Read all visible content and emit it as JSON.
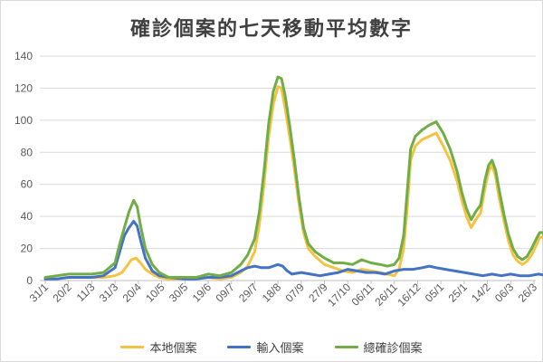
{
  "chart_data": {
    "type": "line",
    "title": "確診個案的七天移動平均數字",
    "xlabel": "",
    "ylabel": "",
    "ylim": [
      0,
      140
    ],
    "yticks": [
      0,
      20,
      40,
      60,
      80,
      100,
      120,
      140
    ],
    "grid": true,
    "legend_position": "bottom",
    "x_tick_labels": [
      "31/1",
      "20/2",
      "11/3",
      "31/3",
      "20/4",
      "10/5",
      "30/5",
      "19/6",
      "09/7",
      "29/7",
      "18/8",
      "07/9",
      "27/9",
      "17/10",
      "06/11",
      "26/11",
      "16/12",
      "05/1",
      "25/1",
      "14/2",
      "06/3",
      "26/3"
    ],
    "series": [
      {
        "name": "本地個案",
        "color": "#f5c242",
        "points": [
          [
            0,
            1
          ],
          [
            0.5,
            1
          ],
          [
            1,
            2
          ],
          [
            1.5,
            2
          ],
          [
            2,
            2
          ],
          [
            2.5,
            2
          ],
          [
            3,
            3
          ],
          [
            3.3,
            5
          ],
          [
            3.5,
            9
          ],
          [
            3.7,
            13
          ],
          [
            3.9,
            14
          ],
          [
            4.1,
            11
          ],
          [
            4.3,
            7
          ],
          [
            4.6,
            4
          ],
          [
            4.9,
            2
          ],
          [
            5.3,
            1
          ],
          [
            6,
            1
          ],
          [
            6.5,
            1
          ],
          [
            7,
            2
          ],
          [
            7.5,
            1
          ],
          [
            8,
            2
          ],
          [
            8.4,
            5
          ],
          [
            8.7,
            9
          ],
          [
            9,
            18
          ],
          [
            9.2,
            35
          ],
          [
            9.4,
            60
          ],
          [
            9.6,
            90
          ],
          [
            9.8,
            110
          ],
          [
            10,
            121
          ],
          [
            10.15,
            120
          ],
          [
            10.3,
            108
          ],
          [
            10.5,
            90
          ],
          [
            10.7,
            70
          ],
          [
            10.9,
            48
          ],
          [
            11.1,
            30
          ],
          [
            11.3,
            20
          ],
          [
            11.6,
            15
          ],
          [
            12,
            10
          ],
          [
            12.4,
            8
          ],
          [
            12.8,
            6
          ],
          [
            13.2,
            5
          ],
          [
            13.6,
            7
          ],
          [
            14,
            6
          ],
          [
            14.4,
            5
          ],
          [
            14.7,
            4
          ],
          [
            15,
            3
          ],
          [
            15.2,
            7
          ],
          [
            15.4,
            20
          ],
          [
            15.55,
            45
          ],
          [
            15.7,
            75
          ],
          [
            15.9,
            84
          ],
          [
            16.2,
            88
          ],
          [
            16.5,
            90
          ],
          [
            16.8,
            92
          ],
          [
            17.1,
            84
          ],
          [
            17.4,
            75
          ],
          [
            17.7,
            62
          ],
          [
            17.9,
            50
          ],
          [
            18.1,
            40
          ],
          [
            18.3,
            33
          ],
          [
            18.5,
            38
          ],
          [
            18.7,
            42
          ],
          [
            18.9,
            58
          ],
          [
            19.05,
            68
          ],
          [
            19.2,
            72
          ],
          [
            19.35,
            65
          ],
          [
            19.5,
            52
          ],
          [
            19.7,
            38
          ],
          [
            19.9,
            25
          ],
          [
            20.1,
            16
          ],
          [
            20.3,
            12
          ],
          [
            20.5,
            10
          ],
          [
            20.7,
            12
          ],
          [
            20.9,
            16
          ],
          [
            21.1,
            22
          ],
          [
            21.25,
            27
          ],
          [
            21.4,
            27
          ],
          [
            21.6,
            12
          ],
          [
            21.8,
            6
          ],
          [
            22,
            5
          ]
        ]
      },
      {
        "name": "輸入個案",
        "color": "#4472c4",
        "points": [
          [
            0,
            1
          ],
          [
            0.5,
            1
          ],
          [
            1,
            2
          ],
          [
            1.5,
            2
          ],
          [
            2,
            2
          ],
          [
            2.5,
            3
          ],
          [
            3,
            8
          ],
          [
            3.2,
            18
          ],
          [
            3.4,
            28
          ],
          [
            3.6,
            33
          ],
          [
            3.8,
            37
          ],
          [
            3.95,
            34
          ],
          [
            4.1,
            25
          ],
          [
            4.3,
            14
          ],
          [
            4.6,
            6
          ],
          [
            4.9,
            3
          ],
          [
            5.3,
            2
          ],
          [
            6,
            1
          ],
          [
            6.5,
            1
          ],
          [
            7,
            2
          ],
          [
            7.5,
            2
          ],
          [
            8,
            3
          ],
          [
            8.4,
            6
          ],
          [
            8.7,
            8
          ],
          [
            9,
            9
          ],
          [
            9.3,
            8
          ],
          [
            9.6,
            8
          ],
          [
            9.8,
            9
          ],
          [
            10,
            10
          ],
          [
            10.2,
            9
          ],
          [
            10.4,
            6
          ],
          [
            10.6,
            4
          ],
          [
            11,
            5
          ],
          [
            11.4,
            4
          ],
          [
            11.8,
            3
          ],
          [
            12.2,
            4
          ],
          [
            12.6,
            5
          ],
          [
            13,
            7
          ],
          [
            13.4,
            6
          ],
          [
            13.8,
            5
          ],
          [
            14.2,
            5
          ],
          [
            14.6,
            4
          ],
          [
            15,
            6
          ],
          [
            15.4,
            7
          ],
          [
            15.8,
            7
          ],
          [
            16.2,
            8
          ],
          [
            16.5,
            9
          ],
          [
            16.8,
            8
          ],
          [
            17.2,
            7
          ],
          [
            17.6,
            6
          ],
          [
            18,
            5
          ],
          [
            18.4,
            4
          ],
          [
            18.8,
            3
          ],
          [
            19.2,
            4
          ],
          [
            19.6,
            3
          ],
          [
            20,
            4
          ],
          [
            20.4,
            3
          ],
          [
            20.8,
            3
          ],
          [
            21.2,
            4
          ],
          [
            21.6,
            3
          ],
          [
            22,
            5
          ]
        ]
      },
      {
        "name": "總確診個案",
        "color": "#70ad47",
        "points": [
          [
            0,
            2
          ],
          [
            0.5,
            3
          ],
          [
            1,
            4
          ],
          [
            1.5,
            4
          ],
          [
            2,
            4
          ],
          [
            2.5,
            5
          ],
          [
            3,
            11
          ],
          [
            3.2,
            23
          ],
          [
            3.4,
            33
          ],
          [
            3.6,
            43
          ],
          [
            3.8,
            50
          ],
          [
            3.95,
            46
          ],
          [
            4.1,
            34
          ],
          [
            4.3,
            20
          ],
          [
            4.6,
            10
          ],
          [
            4.9,
            5
          ],
          [
            5.3,
            2
          ],
          [
            6,
            2
          ],
          [
            6.5,
            2
          ],
          [
            7,
            4
          ],
          [
            7.5,
            3
          ],
          [
            8,
            5
          ],
          [
            8.4,
            10
          ],
          [
            8.7,
            16
          ],
          [
            9,
            26
          ],
          [
            9.2,
            43
          ],
          [
            9.4,
            68
          ],
          [
            9.6,
            98
          ],
          [
            9.8,
            118
          ],
          [
            10,
            127
          ],
          [
            10.15,
            126
          ],
          [
            10.3,
            116
          ],
          [
            10.5,
            97
          ],
          [
            10.7,
            76
          ],
          [
            10.9,
            52
          ],
          [
            11.1,
            33
          ],
          [
            11.3,
            23
          ],
          [
            11.6,
            18
          ],
          [
            12,
            14
          ],
          [
            12.4,
            11
          ],
          [
            12.8,
            11
          ],
          [
            13.2,
            10
          ],
          [
            13.6,
            13
          ],
          [
            14,
            11
          ],
          [
            14.4,
            10
          ],
          [
            14.7,
            9
          ],
          [
            15,
            10
          ],
          [
            15.2,
            14
          ],
          [
            15.4,
            28
          ],
          [
            15.55,
            55
          ],
          [
            15.7,
            82
          ],
          [
            15.9,
            90
          ],
          [
            16.2,
            94
          ],
          [
            16.5,
            97
          ],
          [
            16.8,
            99
          ],
          [
            17.1,
            92
          ],
          [
            17.4,
            82
          ],
          [
            17.7,
            68
          ],
          [
            17.9,
            55
          ],
          [
            18.1,
            45
          ],
          [
            18.3,
            38
          ],
          [
            18.5,
            43
          ],
          [
            18.7,
            47
          ],
          [
            18.9,
            63
          ],
          [
            19.05,
            72
          ],
          [
            19.2,
            75
          ],
          [
            19.35,
            69
          ],
          [
            19.5,
            57
          ],
          [
            19.7,
            42
          ],
          [
            19.9,
            29
          ],
          [
            20.1,
            20
          ],
          [
            20.3,
            15
          ],
          [
            20.5,
            13
          ],
          [
            20.7,
            15
          ],
          [
            20.9,
            20
          ],
          [
            21.1,
            26
          ],
          [
            21.25,
            30
          ],
          [
            21.4,
            30
          ],
          [
            21.6,
            16
          ],
          [
            21.8,
            12
          ],
          [
            22,
            11
          ]
        ]
      }
    ]
  }
}
